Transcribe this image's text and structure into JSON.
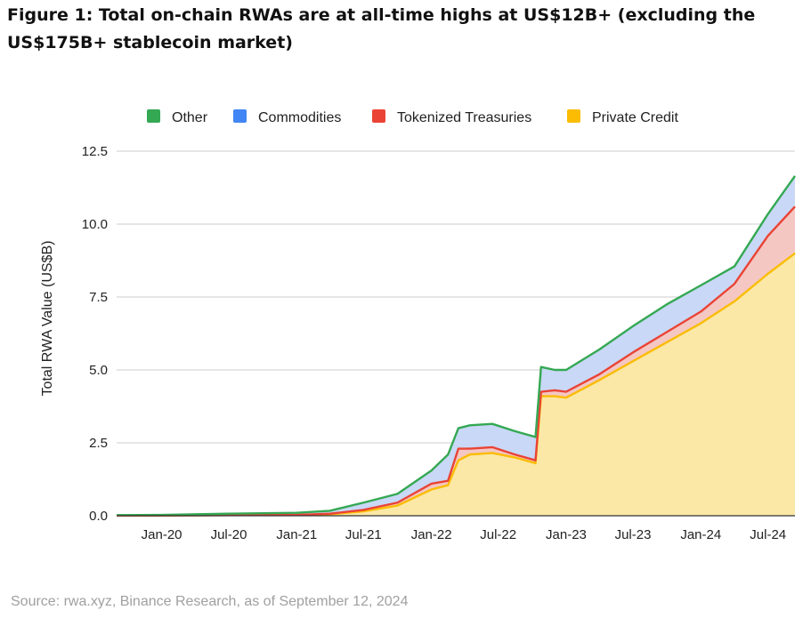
{
  "title": "Figure 1: Total on-chain RWAs are at all-time highs at US$12B+ (excluding the US$175B+ stablecoin market)",
  "source": "Source: rwa.xyz, Binance Research, as of September 12, 2024",
  "colors": {
    "other": "#34a853",
    "commodities": "#4285f4",
    "treasuries": "#ea4335",
    "private_credit": "#fbbc04",
    "other_fill": "#c9d8f6",
    "treasuries_fill": "#f4c7c3",
    "private_credit_fill": "#fbe8a6",
    "grid": "#cccccc"
  },
  "chart_data": {
    "type": "area",
    "stacked": true,
    "ylabel": "Total RWA Value (US$B)",
    "xlabel": "",
    "ylim": [
      0,
      12.5
    ],
    "y_ticks": [
      "0.0",
      "2.5",
      "5.0",
      "7.5",
      "10.0",
      "12.5"
    ],
    "x_ticks": [
      "Jan-20",
      "Jul-20",
      "Jan-21",
      "Jul-21",
      "Jan-22",
      "Jul-22",
      "Jan-23",
      "Jul-23",
      "Jan-24",
      "Jul-24"
    ],
    "x_range": [
      "2019-09-01",
      "2024-09-12"
    ],
    "grid": true,
    "legend_position": "top",
    "legend": [
      "Other",
      "Commodities",
      "Tokenized Treasuries",
      "Private Credit"
    ],
    "x": [
      "2019-09-01",
      "2020-01-01",
      "2020-07-01",
      "2021-01-01",
      "2021-04-01",
      "2021-07-01",
      "2021-10-01",
      "2022-01-01",
      "2022-02-15",
      "2022-03-15",
      "2022-04-15",
      "2022-06-15",
      "2022-08-15",
      "2022-10-10",
      "2022-10-25",
      "2022-12-01",
      "2023-01-01",
      "2023-04-01",
      "2023-07-01",
      "2023-10-01",
      "2024-01-01",
      "2024-04-01",
      "2024-07-01",
      "2024-09-12"
    ],
    "series": [
      {
        "name": "Private Credit",
        "values": [
          0.01,
          0.01,
          0.02,
          0.03,
          0.05,
          0.15,
          0.35,
          0.9,
          1.05,
          1.9,
          2.1,
          2.15,
          2.0,
          1.8,
          4.1,
          4.1,
          4.05,
          4.65,
          5.3,
          5.95,
          6.6,
          7.35,
          8.3,
          9.0
        ]
      },
      {
        "name": "Tokenized Treasuries",
        "values": [
          0.0,
          0.0,
          0.0,
          0.0,
          0.02,
          0.05,
          0.1,
          0.2,
          0.15,
          0.4,
          0.2,
          0.2,
          0.1,
          0.1,
          0.15,
          0.2,
          0.2,
          0.2,
          0.3,
          0.35,
          0.4,
          0.6,
          1.3,
          1.6
        ]
      },
      {
        "name": "Commodities",
        "values": [
          0.0,
          0.0,
          0.0,
          0.0,
          0.0,
          0.0,
          0.0,
          0.0,
          0.0,
          0.0,
          0.0,
          0.0,
          0.0,
          0.0,
          0.0,
          0.0,
          0.0,
          0.0,
          0.0,
          0.0,
          0.0,
          0.0,
          0.0,
          0.0
        ]
      },
      {
        "name": "Other",
        "values": [
          0.01,
          0.02,
          0.05,
          0.07,
          0.1,
          0.25,
          0.3,
          0.45,
          0.9,
          0.7,
          0.8,
          0.8,
          0.8,
          0.8,
          0.85,
          0.7,
          0.75,
          0.85,
          0.9,
          0.95,
          0.9,
          0.6,
          0.75,
          1.05
        ]
      }
    ]
  }
}
